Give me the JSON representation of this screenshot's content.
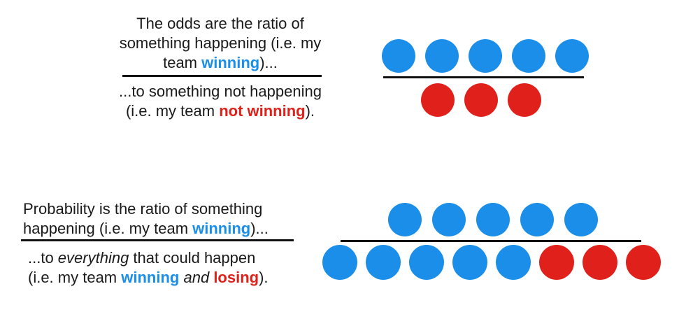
{
  "colors": {
    "win": "#1a8ee8",
    "lose": "#e0211b",
    "text": "#1a1a1a",
    "line": "#111111"
  },
  "odds": {
    "numerator": {
      "line1": "The odds are the ratio of",
      "line2": "something happening (i.e. my",
      "line3_pre": "team ",
      "line3_hl": "winning",
      "line3_post": ")..."
    },
    "denominator": {
      "line1": "...to something not happening",
      "line2_pre": "(i.e. my team ",
      "line2_hl": "not winning",
      "line2_post": ")."
    },
    "top_dots": [
      "win",
      "win",
      "win",
      "win",
      "win"
    ],
    "bottom_dots": [
      "lose",
      "lose",
      "lose"
    ]
  },
  "probability": {
    "numerator": {
      "line1": "Probability is the ratio of something",
      "line2_pre": "happening (i.e. my team ",
      "line2_hl": "winning",
      "line2_post": ")..."
    },
    "denominator": {
      "line1_pre": "...to ",
      "line1_em": "everything",
      "line1_post": " that could happen",
      "line2_pre": "(i.e. my team ",
      "line2_hl1": "winning",
      "line2_mid": "and",
      "line2_hl2": "losing",
      "line2_post": ")."
    },
    "top_dots": [
      "win",
      "win",
      "win",
      "win",
      "win"
    ],
    "bottom_dots": [
      "win",
      "win",
      "win",
      "win",
      "win",
      "lose",
      "lose",
      "lose"
    ]
  }
}
